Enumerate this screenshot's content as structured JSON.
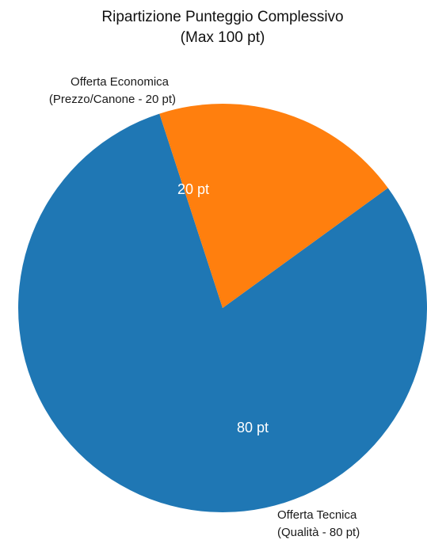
{
  "chart_data": {
    "type": "pie",
    "title": "Ripartizione Punteggio Complessivo",
    "subtitle": "(Max 100 pt)",
    "slices": [
      {
        "name": "Offerta Tecnica",
        "detail": "(Qualità - 80 pt)",
        "value": 80,
        "data_label": "80 pt",
        "color": "#1f77b4"
      },
      {
        "name": "Offerta Economica",
        "detail": "(Prezzo/Canone - 20 pt)",
        "value": 20,
        "data_label": "20 pt",
        "color": "#ff7f0e"
      }
    ],
    "total": 100,
    "start_angle_deg": -108,
    "direction": "counterclockwise",
    "legend": "none"
  }
}
